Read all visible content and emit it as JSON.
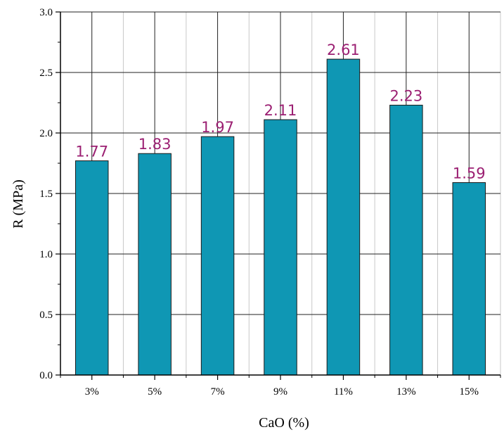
{
  "chart_data": {
    "type": "bar",
    "categories": [
      "3%",
      "5%",
      "7%",
      "9%",
      "11%",
      "13%",
      "15%"
    ],
    "values": [
      1.77,
      1.83,
      1.97,
      2.11,
      2.61,
      2.23,
      1.59
    ],
    "data_labels": [
      "1.77",
      "1.83",
      "1.97",
      "2.11",
      "2.61",
      "2.23",
      "1.59"
    ],
    "xlabel": "CaO (%)",
    "ylabel": "R (MPa)",
    "ylim": [
      0,
      3.0
    ],
    "yticks": [
      "0.0",
      "0.5",
      "1.0",
      "1.5",
      "2.0",
      "2.5",
      "3.0"
    ],
    "grid": true,
    "legend": "none"
  },
  "colors": {
    "bar_fill": "#0f97b4",
    "bar_stroke": "#1a1a1a",
    "data_label": "#9b1f72",
    "grid_major": "#222222",
    "grid_minor": "#c8c8c8",
    "axis": "#000000"
  }
}
